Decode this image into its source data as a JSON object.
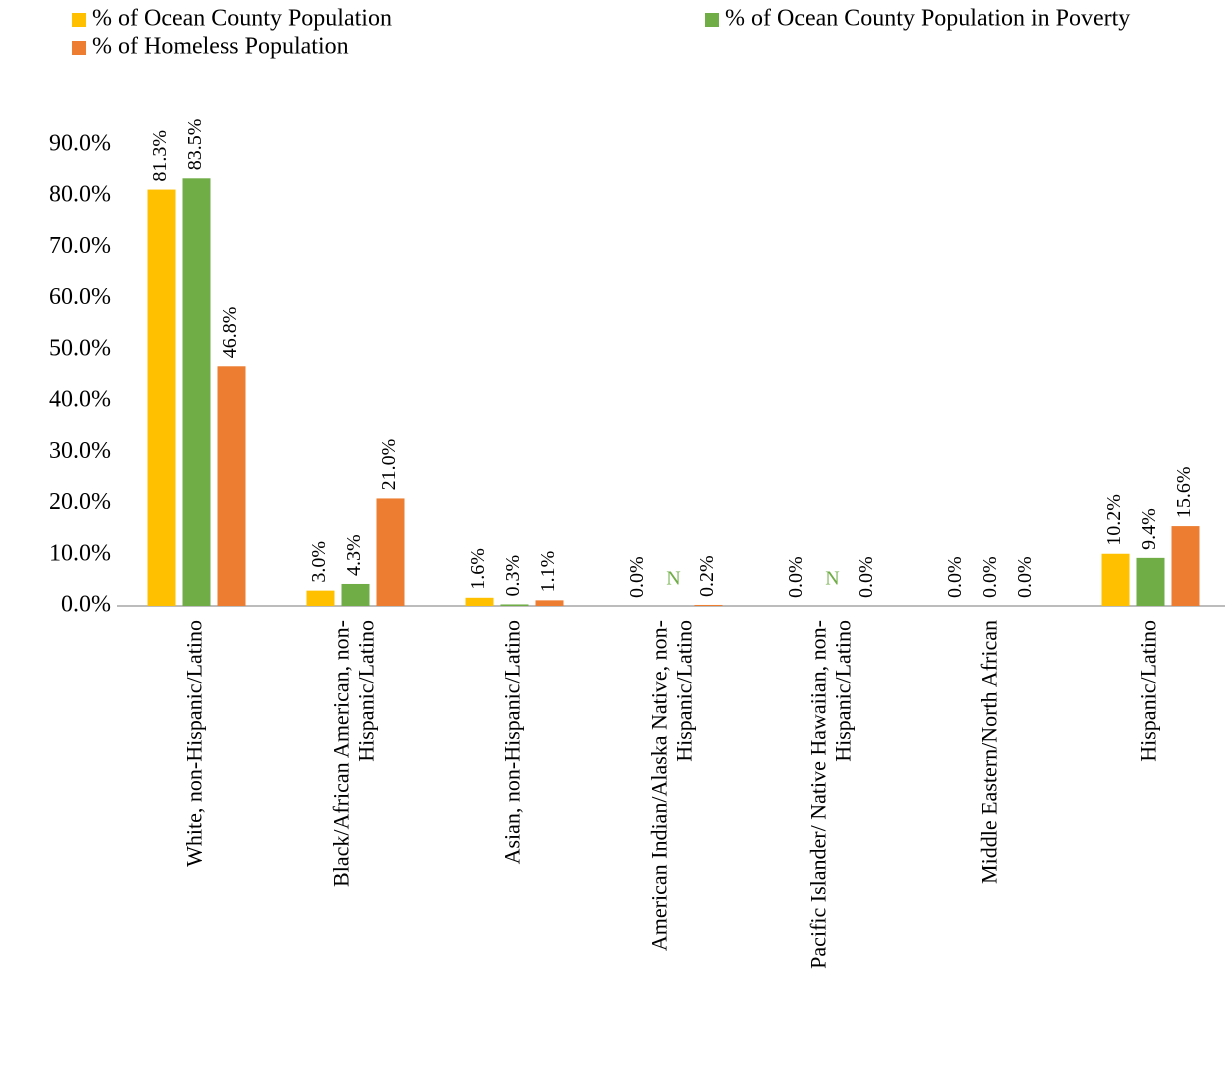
{
  "chart_data": {
    "type": "bar",
    "categories": [
      "White, non-Hispanic/Latino",
      "Black/African American, non-Hispanic/Latino",
      "Asian, non-Hispanic/Latino",
      "American Indian/Alaska Native, non-Hispanic/Latino",
      "Pacific Islander/ Native Hawaiian, non-Hispanic/Latino",
      "Middle Eastern/North African",
      "Hispanic/Latino"
    ],
    "series": [
      {
        "name": "% of Ocean County Population",
        "color": "#FFC000",
        "values": [
          81.3,
          3.0,
          1.6,
          0.0,
          0.0,
          0.0,
          10.2
        ],
        "value_labels": [
          "81.3%",
          "3.0%",
          "1.6%",
          "0.0%",
          "0.0%",
          "0.0%",
          "10.2%"
        ]
      },
      {
        "name": "% of Ocean County Population in Poverty",
        "color": "#70AD47",
        "values": [
          83.5,
          4.3,
          0.3,
          null,
          null,
          0.0,
          9.4
        ],
        "value_labels": [
          "83.5%",
          "4.3%",
          "0.3%",
          "N",
          "N",
          "0.0%",
          "9.4%"
        ]
      },
      {
        "name": "% of Homeless Population",
        "color": "#ED7D31",
        "values": [
          46.8,
          21.0,
          1.1,
          0.2,
          0.0,
          0.0,
          15.6
        ],
        "value_labels": [
          "46.8%",
          "21.0%",
          "1.1%",
          "0.2%",
          "0.0%",
          "0.0%",
          "15.6%"
        ]
      }
    ],
    "ylim": [
      0,
      90
    ],
    "yticks": [
      {
        "value": 0,
        "label": "0.0%"
      },
      {
        "value": 10,
        "label": "10.0%"
      },
      {
        "value": 20,
        "label": "20.0%"
      },
      {
        "value": 30,
        "label": "30.0%"
      },
      {
        "value": 40,
        "label": "40.0%"
      },
      {
        "value": 50,
        "label": "50.0%"
      },
      {
        "value": 60,
        "label": "60.0%"
      },
      {
        "value": 70,
        "label": "70.0%"
      },
      {
        "value": 80,
        "label": "80.0%"
      },
      {
        "value": 90,
        "label": "90.0%"
      }
    ],
    "grid": false,
    "legend": "top"
  }
}
